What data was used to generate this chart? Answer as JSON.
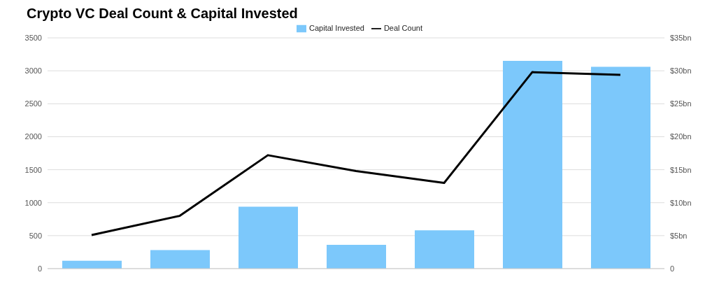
{
  "chart_data": {
    "type": "bar",
    "title": "Crypto VC Deal Count & Capital Invested",
    "categories": [
      null,
      null,
      null,
      null,
      null,
      null,
      null
    ],
    "series": [
      {
        "name": "Capital Invested",
        "axis": "y2",
        "color": "#7cc8fb",
        "values": [
          1.2,
          2.8,
          9.4,
          3.6,
          5.8,
          31.5,
          30.6
        ]
      },
      {
        "name": "Deal Count",
        "type": "line",
        "color": "#000000",
        "values": [
          510,
          800,
          1720,
          1480,
          1300,
          2980,
          2940
        ]
      }
    ],
    "ylim": [
      0,
      3500
    ],
    "yticks": [
      0,
      500,
      1000,
      1500,
      2000,
      2500,
      3000,
      3500
    ],
    "y2lim": [
      0,
      35
    ],
    "y2ticks": [
      {
        "value": 0,
        "label": "0"
      },
      {
        "value": 5,
        "label": "$5bn"
      },
      {
        "value": 10,
        "label": "$10bn"
      },
      {
        "value": 15,
        "label": "$15bn"
      },
      {
        "value": 20,
        "label": "$20bn"
      },
      {
        "value": 25,
        "label": "$25bn"
      },
      {
        "value": 30,
        "label": "$30bn"
      },
      {
        "value": 35,
        "label": "$35bn"
      }
    ],
    "grid": "y",
    "legend": "top",
    "marker": "none",
    "line_style": "solid",
    "tick_labels": "y"
  }
}
